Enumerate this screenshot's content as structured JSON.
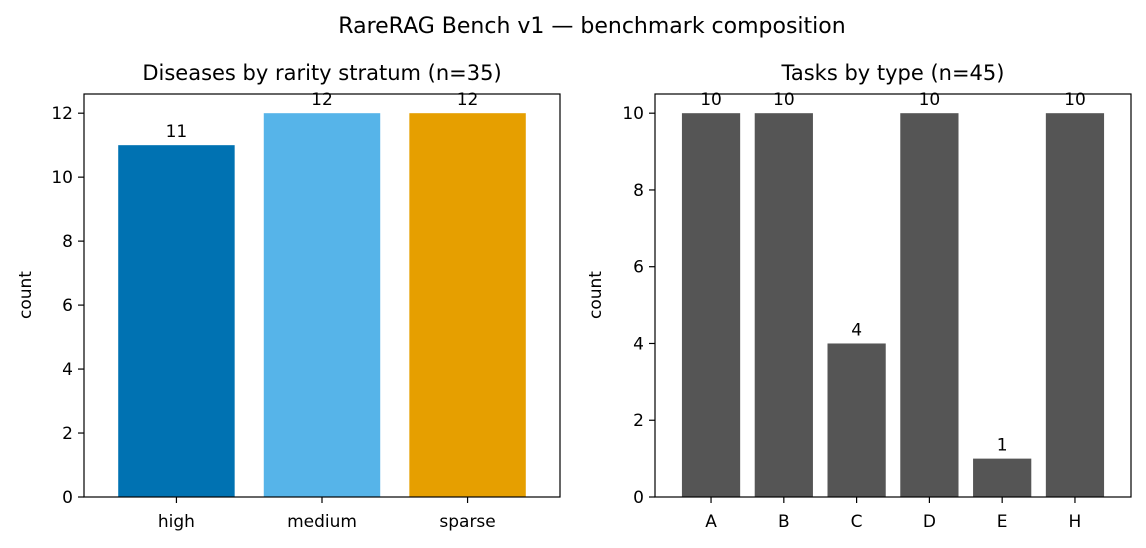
{
  "figure": {
    "title": "RareRAG Bench v1 — benchmark composition"
  },
  "chart_data": [
    {
      "type": "bar",
      "title": "Diseases by rarity stratum (n=35)",
      "xlabel": "",
      "ylabel": "count",
      "categories": [
        "high",
        "medium",
        "sparse"
      ],
      "values": [
        11,
        12,
        12
      ],
      "colors": [
        "#0072B2",
        "#56B4E9",
        "#E69F00"
      ],
      "ylim": [
        0,
        12.6
      ],
      "yticks": [
        0,
        2,
        4,
        6,
        8,
        10,
        12
      ],
      "grid": false,
      "data_labels": true
    },
    {
      "type": "bar",
      "title": "Tasks by type (n=45)",
      "xlabel": "",
      "ylabel": "count",
      "categories": [
        "A",
        "B",
        "C",
        "D",
        "E",
        "H"
      ],
      "values": [
        10,
        10,
        4,
        10,
        1,
        10
      ],
      "colors": [
        "#555555"
      ],
      "ylim": [
        0,
        10.5
      ],
      "yticks": [
        0,
        2,
        4,
        6,
        8,
        10
      ],
      "grid": false,
      "data_labels": true
    }
  ]
}
